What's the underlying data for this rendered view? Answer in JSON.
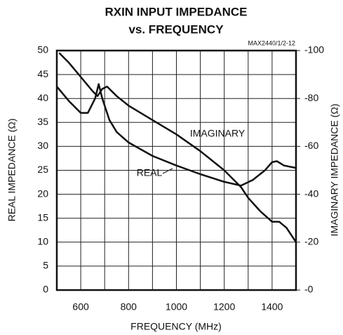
{
  "chart_data": {
    "type": "line",
    "title": [
      "RXIN INPUT IMPEDANCE",
      "vs. FREQUENCY"
    ],
    "part_label": "MAX2440/1/2-12",
    "xlabel": "FREQUENCY (MHz)",
    "ylabel": "REAL IMPEDANCE (Ω)",
    "y2label": "IMAGINARY IMPEDANCE (Ω)",
    "xlim": [
      500,
      1500
    ],
    "xticks": [
      600,
      800,
      1000,
      1200,
      1400
    ],
    "xminor_ticks": [
      700,
      900,
      1100,
      1300
    ],
    "ylim": [
      0,
      50
    ],
    "yticks": [
      0,
      5,
      10,
      15,
      20,
      25,
      30,
      35,
      40,
      45,
      50
    ],
    "y2lim": [
      0,
      -100
    ],
    "y2ticks": [
      {
        "value": 0,
        "label": "-0"
      },
      -20,
      -40,
      -60,
      -80,
      -100
    ],
    "grid": true,
    "annotations": [
      "IMAGINARY",
      "REAL"
    ],
    "series": [
      {
        "name": "REAL",
        "color": "#111111",
        "x": [
          500,
          550,
          600,
          630,
          660,
          675,
          690,
          720,
          750,
          800,
          900,
          1000,
          1100,
          1200,
          1270,
          1320,
          1370,
          1400,
          1420,
          1450,
          1500
        ],
        "values": [
          42.5,
          39.5,
          37,
          37,
          40,
          43,
          40,
          35.5,
          33,
          30.8,
          28,
          26,
          24.2,
          22.6,
          21.8,
          23,
          25,
          26.7,
          26.9,
          26,
          25.5
        ]
      },
      {
        "name": "IMAGINARY",
        "color": "#111111",
        "axis": "y2",
        "x": [
          510,
          550,
          600,
          650,
          670,
          690,
          710,
          750,
          800,
          900,
          1000,
          1100,
          1200,
          1270,
          1300,
          1350,
          1400,
          1430,
          1460,
          1500
        ],
        "values": [
          -99,
          -95,
          -89,
          -83,
          -81,
          -84,
          -85,
          -81,
          -77,
          -71,
          -65,
          -58,
          -50,
          -43,
          -38.5,
          -33,
          -28.5,
          -28.5,
          -26,
          -20
        ]
      }
    ]
  }
}
